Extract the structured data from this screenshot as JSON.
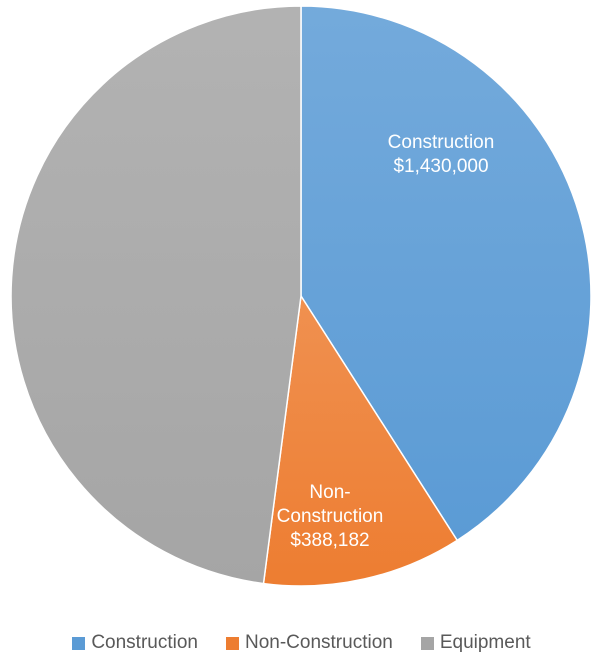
{
  "chart_data": {
    "type": "pie",
    "title": "",
    "slices": [
      {
        "name": "Construction",
        "value": 1430000,
        "label_lines": [
          "Construction",
          "$1,430,000"
        ],
        "color": "#5B9BD5"
      },
      {
        "name": "Non-Construction",
        "value": 388182,
        "label_lines": [
          "Non-",
          "Construction",
          "$388,182"
        ],
        "color": "#ED7D31"
      },
      {
        "name": "Equipment",
        "value": 1674000,
        "label_lines": [],
        "color": "#A5A5A5"
      }
    ],
    "legend": {
      "position": "bottom",
      "entries": [
        "Construction",
        "Non-Construction",
        "Equipment"
      ]
    }
  },
  "legend_text_color": "#595959"
}
